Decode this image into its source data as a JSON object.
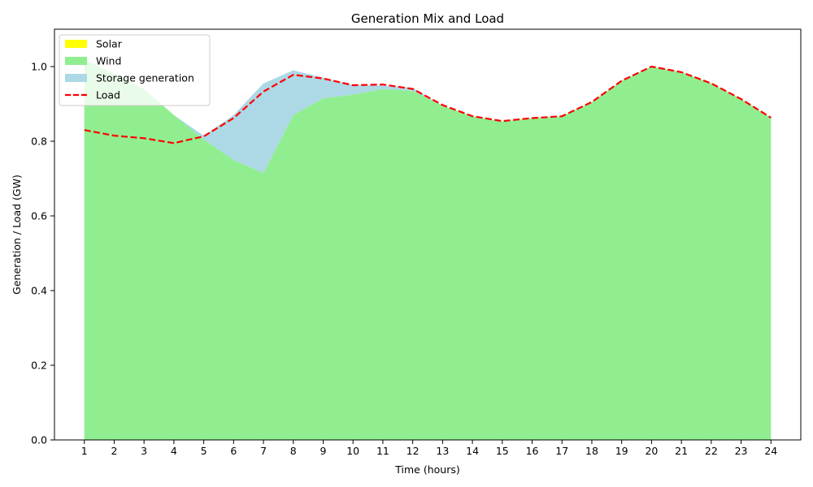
{
  "chart_data": {
    "type": "area",
    "title": "Generation Mix and Load",
    "xlabel": "Time (hours)",
    "ylabel": "Generation / Load (GW)",
    "x": [
      1,
      2,
      3,
      4,
      5,
      6,
      7,
      8,
      9,
      10,
      11,
      12,
      13,
      14,
      15,
      16,
      17,
      18,
      19,
      20,
      21,
      22,
      23,
      24
    ],
    "xlim": [
      0,
      25
    ],
    "ylim": [
      0,
      1.1
    ],
    "yticks": [
      0.0,
      0.2,
      0.4,
      0.6,
      0.8,
      1.0
    ],
    "ytick_labels": [
      "0.0",
      "0.2",
      "0.4",
      "0.6",
      "0.8",
      "1.0"
    ],
    "xtick_labels": [
      "1",
      "2",
      "3",
      "4",
      "5",
      "6",
      "7",
      "8",
      "9",
      "10",
      "11",
      "12",
      "13",
      "14",
      "15",
      "16",
      "17",
      "18",
      "19",
      "20",
      "21",
      "22",
      "23",
      "24"
    ],
    "grid": false,
    "legend_position": "top-left",
    "stacked": true,
    "series": [
      {
        "name": "Solar",
        "kind": "area",
        "color": "#ffff00",
        "values": [
          0,
          0,
          0,
          0,
          0,
          0,
          0,
          0,
          0,
          0,
          0,
          0,
          0,
          0,
          0,
          0,
          0,
          0,
          0,
          0,
          0,
          0,
          0,
          0
        ]
      },
      {
        "name": "Wind",
        "kind": "area",
        "color": "#90ee90",
        "values": [
          1.02,
          0.98,
          0.94,
          0.87,
          0.805,
          0.75,
          0.715,
          0.87,
          0.915,
          0.925,
          0.94,
          0.935,
          0.895,
          0.867,
          0.853,
          0.862,
          0.867,
          0.905,
          0.962,
          1.0,
          0.985,
          0.955,
          0.913,
          0.863
        ]
      },
      {
        "name": "Storage generation",
        "kind": "area",
        "color": "#add8e6",
        "values": [
          0,
          0,
          0,
          0,
          0.01,
          0.12,
          0.24,
          0.12,
          0.055,
          0.025,
          0.01,
          0.008,
          0,
          0,
          0,
          0,
          0,
          0,
          0,
          0,
          0,
          0,
          0,
          0
        ]
      },
      {
        "name": "Load",
        "kind": "line",
        "style": "dashed",
        "color": "#ff0000",
        "values": [
          0.83,
          0.815,
          0.808,
          0.795,
          0.813,
          0.862,
          0.933,
          0.978,
          0.968,
          0.95,
          0.952,
          0.94,
          0.897,
          0.867,
          0.854,
          0.862,
          0.867,
          0.905,
          0.962,
          1.0,
          0.985,
          0.955,
          0.913,
          0.863
        ]
      }
    ]
  }
}
